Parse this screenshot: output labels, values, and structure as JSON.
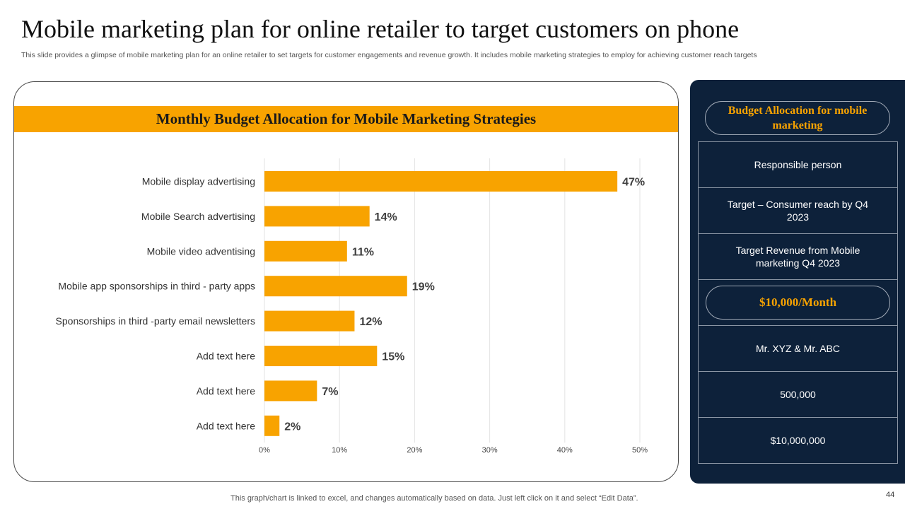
{
  "slide": {
    "title": "Mobile marketing plan for online retailer to target customers on phone",
    "subtitle": "This slide provides a glimpse of mobile marketing plan for an online retailer to set targets for customer engagements and revenue growth. It includes mobile marketing strategies to employ for achieving customer reach targets",
    "footnote": "This graph/chart is linked to excel, and changes automatically based on data. Just left click on it and select “Edit Data”.",
    "page_number": "44"
  },
  "colors": {
    "accent": "#f8a300",
    "panel": "#0d213a",
    "text": "#1a1a1a"
  },
  "chart_data": {
    "type": "bar",
    "orientation": "horizontal",
    "title": "Monthly Budget Allocation for Mobile Marketing Strategies",
    "categories": [
      "Mobile display advertising",
      "Mobile Search advertising",
      "Mobile video adventising",
      "Mobile app sponsorships in third - party apps",
      "Sponsorships in third -party email newsletters",
      "Add text here",
      "Add text here",
      "Add text here"
    ],
    "values": [
      47,
      14,
      11,
      19,
      12,
      15,
      7,
      2
    ],
    "value_labels": [
      "47%",
      "14%",
      "11%",
      "19%",
      "12%",
      "15%",
      "7%",
      "2%"
    ],
    "xlim": [
      0,
      50
    ],
    "x_ticks": [
      0,
      10,
      20,
      30,
      40,
      50
    ],
    "x_tick_labels": [
      "0%",
      "10%",
      "20%",
      "30%",
      "40%",
      "50%"
    ],
    "grid": true,
    "color": "#f8a300"
  },
  "panel": {
    "header": "Budget Allocation for mobile marketing",
    "rows": [
      "Responsible person",
      "Target – Consumer reach by Q4 2023",
      "Target Revenue from Mobile marketing  Q4 2023"
    ],
    "budget": "$10,000/Month",
    "values": [
      "Mr. XYZ  & Mr. ABC",
      "500,000",
      "$10,000,000"
    ]
  }
}
